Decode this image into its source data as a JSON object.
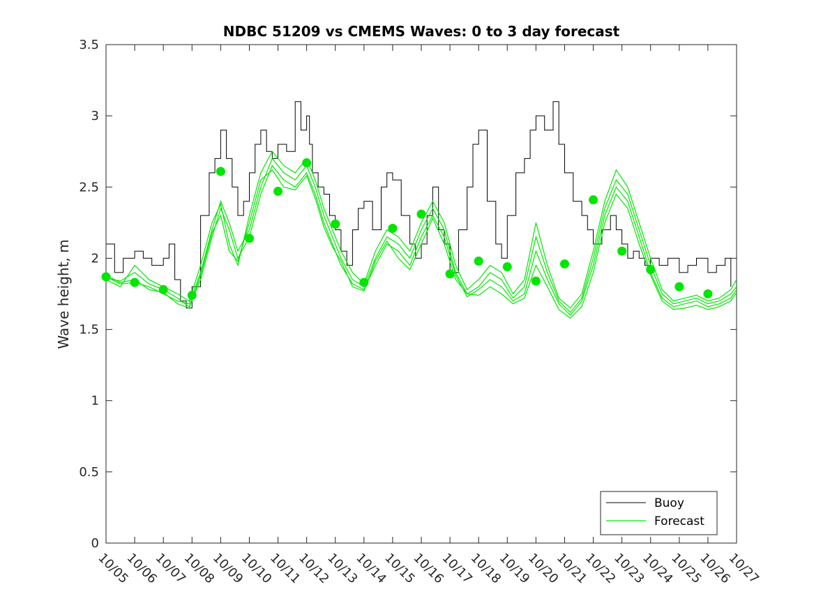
{
  "chart_data": {
    "type": "line",
    "title": "NDBC 51209 vs CMEMS Waves: 0 to 3 day forecast",
    "xlabel": "",
    "ylabel": "Wave height, m",
    "xlim": [
      0,
      22
    ],
    "ylim": [
      0,
      3.5
    ],
    "x_tick_labels": [
      "10/05",
      "10/06",
      "10/07",
      "10/08",
      "10/09",
      "10/10",
      "10/11",
      "10/12",
      "10/13",
      "10/14",
      "10/15",
      "10/16",
      "10/17",
      "10/18",
      "10/19",
      "10/20",
      "10/21",
      "10/22",
      "10/23",
      "10/24",
      "10/25",
      "10/26",
      "10/27"
    ],
    "y_ticks": [
      0,
      0.5,
      1,
      1.5,
      2,
      2.5,
      3,
      3.5
    ],
    "y_tick_labels": [
      "0",
      "0.5",
      "1",
      "1.5",
      "2",
      "2.5",
      "3",
      "3.5"
    ],
    "legend": {
      "location": "bottom-right",
      "entries": [
        "Buoy",
        "Forecast"
      ]
    },
    "colors": {
      "buoy": "#000000",
      "forecast": "#00e600",
      "axis": "#262626"
    },
    "buoy_series": {
      "name": "Buoy",
      "x": [
        0,
        0.3,
        0.6,
        1,
        1.3,
        1.6,
        2,
        2.2,
        2.4,
        2.6,
        2.8,
        3,
        3.3,
        3.6,
        3.8,
        4,
        4.2,
        4.4,
        4.6,
        4.8,
        5,
        5.2,
        5.4,
        5.6,
        5.8,
        6,
        6.3,
        6.6,
        6.8,
        7,
        7.1,
        7.2,
        7.4,
        7.6,
        7.8,
        8,
        8.2,
        8.4,
        8.6,
        8.8,
        9,
        9.3,
        9.6,
        9.8,
        10,
        10.3,
        10.6,
        10.8,
        11,
        11.2,
        11.4,
        11.6,
        11.8,
        12,
        12.3,
        12.6,
        12.8,
        13,
        13.3,
        13.6,
        13.8,
        14,
        14.3,
        14.6,
        14.8,
        15,
        15.3,
        15.6,
        15.8,
        16,
        16.3,
        16.6,
        16.8,
        17,
        17.3,
        17.6,
        17.8,
        18,
        18.2,
        18.4,
        18.6,
        18.8,
        19,
        19.3,
        19.6,
        19.8,
        20,
        20.3,
        20.6,
        20.8,
        21,
        21.3,
        21.6,
        21.8
      ],
      "values": [
        2.1,
        1.9,
        2.0,
        2.05,
        2.0,
        1.95,
        2.0,
        2.1,
        1.85,
        1.7,
        1.65,
        1.8,
        2.3,
        2.6,
        2.7,
        2.9,
        2.7,
        2.5,
        2.3,
        2.4,
        2.6,
        2.8,
        2.9,
        2.75,
        2.7,
        2.8,
        2.75,
        3.1,
        2.9,
        3.0,
        2.8,
        2.6,
        2.5,
        2.45,
        2.3,
        2.2,
        2.05,
        1.95,
        2.2,
        2.35,
        2.4,
        2.2,
        2.5,
        2.6,
        2.55,
        2.3,
        2.1,
        2.0,
        2.1,
        2.3,
        2.5,
        2.2,
        2.1,
        1.9,
        2.2,
        2.5,
        2.8,
        2.9,
        2.4,
        2.1,
        2.0,
        2.3,
        2.6,
        2.7,
        2.9,
        3.0,
        2.9,
        3.1,
        2.8,
        2.6,
        2.4,
        2.3,
        2.2,
        2.1,
        2.2,
        2.3,
        2.2,
        2.1,
        2.0,
        2.05,
        2.0,
        1.95,
        2.0,
        1.95,
        2.0,
        2.0,
        1.9,
        1.95,
        2.0,
        2.0,
        1.9,
        1.95,
        2.0,
        1.8
      ]
    },
    "forecast_series": [
      {
        "name": "Forecast run 1",
        "x": [
          0,
          0.5,
          1,
          1.5,
          2,
          2.5,
          2.9,
          3.3,
          3.7,
          4,
          4.3,
          4.6,
          5,
          5.4,
          5.8,
          6.2,
          6.6,
          7,
          7.3,
          7.6,
          7.9,
          8.2,
          8.6,
          9,
          9.4,
          9.8,
          10.2,
          10.6,
          11,
          11.4,
          11.8,
          12.2,
          12.6,
          13,
          13.4,
          13.8,
          14.2,
          14.6,
          15,
          15.4,
          15.8,
          16.2,
          16.6,
          17,
          17.4,
          17.8,
          18.2,
          18.6,
          19,
          19.4,
          19.8,
          20.2,
          20.6,
          21,
          21.4,
          21.8,
          22
        ],
        "values": [
          1.87,
          1.82,
          1.83,
          1.8,
          1.75,
          1.7,
          1.68,
          1.9,
          2.2,
          2.4,
          2.25,
          2.05,
          2.2,
          2.5,
          2.7,
          2.6,
          2.55,
          2.65,
          2.5,
          2.3,
          2.15,
          2.0,
          1.85,
          1.8,
          2.0,
          2.15,
          2.1,
          2.0,
          2.2,
          2.35,
          2.2,
          1.9,
          1.75,
          1.8,
          1.9,
          1.85,
          1.72,
          1.8,
          2.15,
          1.9,
          1.7,
          1.62,
          1.72,
          2.0,
          2.35,
          2.55,
          2.45,
          2.2,
          1.95,
          1.75,
          1.68,
          1.7,
          1.72,
          1.68,
          1.7,
          1.75,
          1.8
        ]
      },
      {
        "name": "Forecast run 2",
        "x": [
          0,
          0.5,
          1,
          1.5,
          2,
          2.5,
          2.9,
          3.3,
          3.7,
          4,
          4.3,
          4.6,
          5,
          5.4,
          5.8,
          6.2,
          6.6,
          7,
          7.3,
          7.6,
          7.9,
          8.2,
          8.6,
          9,
          9.4,
          9.8,
          10.2,
          10.6,
          11,
          11.4,
          11.8,
          12.2,
          12.6,
          13,
          13.4,
          13.8,
          14.2,
          14.6,
          15,
          15.4,
          15.8,
          16.2,
          16.6,
          17,
          17.4,
          17.8,
          18.2,
          18.6,
          19,
          19.4,
          19.8,
          20.2,
          20.6,
          21,
          21.4,
          21.8,
          22
        ],
        "values": [
          1.86,
          1.84,
          1.9,
          1.82,
          1.78,
          1.72,
          1.66,
          1.85,
          2.15,
          2.35,
          2.2,
          2.0,
          2.15,
          2.45,
          2.65,
          2.55,
          2.5,
          2.6,
          2.45,
          2.25,
          2.1,
          1.95,
          1.82,
          1.78,
          1.95,
          2.1,
          2.05,
          1.95,
          2.15,
          2.3,
          2.15,
          1.88,
          1.73,
          1.78,
          1.85,
          1.8,
          1.7,
          1.75,
          2.05,
          1.85,
          1.68,
          1.6,
          1.7,
          1.95,
          2.3,
          2.5,
          2.4,
          2.15,
          1.9,
          1.72,
          1.66,
          1.68,
          1.7,
          1.66,
          1.68,
          1.72,
          1.78
        ]
      },
      {
        "name": "Forecast run 3",
        "x": [
          0,
          0.5,
          1,
          1.5,
          2,
          2.5,
          2.9,
          3.3,
          3.7,
          4,
          4.3,
          4.6,
          5,
          5.4,
          5.8,
          6.2,
          6.6,
          7,
          7.3,
          7.6,
          7.9,
          8.2,
          8.6,
          9,
          9.4,
          9.8,
          10.2,
          10.6,
          11,
          11.4,
          11.8,
          12.2,
          12.6,
          13,
          13.4,
          13.8,
          14.2,
          14.6,
          15,
          15.4,
          15.8,
          16.2,
          16.6,
          17,
          17.4,
          17.8,
          18.2,
          18.6,
          19,
          19.4,
          19.8,
          20.2,
          20.6,
          21,
          21.4,
          21.8,
          22
        ],
        "values": [
          1.85,
          1.8,
          1.95,
          1.85,
          1.8,
          1.75,
          1.7,
          1.95,
          2.25,
          2.38,
          2.1,
          1.95,
          2.3,
          2.6,
          2.75,
          2.65,
          2.6,
          2.7,
          2.55,
          2.35,
          2.2,
          2.05,
          1.9,
          1.82,
          2.05,
          2.2,
          2.15,
          2.05,
          2.25,
          2.4,
          2.25,
          1.95,
          1.78,
          1.85,
          1.95,
          1.9,
          1.75,
          1.85,
          2.25,
          1.95,
          1.72,
          1.65,
          1.75,
          2.05,
          2.4,
          2.62,
          2.5,
          2.25,
          2.0,
          1.78,
          1.7,
          1.72,
          1.74,
          1.7,
          1.72,
          1.78,
          1.85
        ]
      },
      {
        "name": "Forecast run 4",
        "x": [
          0,
          0.5,
          1,
          1.5,
          2,
          2.5,
          2.9,
          3.3,
          3.7,
          4,
          4.3,
          4.6,
          5,
          5.4,
          5.8,
          6.2,
          6.6,
          7,
          7.3,
          7.6,
          7.9,
          8.2,
          8.6,
          9,
          9.4,
          9.8,
          10.2,
          10.6,
          11,
          11.4,
          11.8,
          12.2,
          12.6,
          13,
          13.4,
          13.8,
          14.2,
          14.6,
          15,
          15.4,
          15.8,
          16.2,
          16.6,
          17,
          17.4,
          17.8,
          18.2,
          18.6,
          19,
          19.4,
          19.8,
          20.2,
          20.6,
          21,
          21.4,
          21.8,
          22
        ],
        "values": [
          1.88,
          1.83,
          1.85,
          1.78,
          1.76,
          1.68,
          1.65,
          1.88,
          2.18,
          2.3,
          2.05,
          1.98,
          2.25,
          2.55,
          2.62,
          2.5,
          2.48,
          2.58,
          2.42,
          2.22,
          2.08,
          1.98,
          1.8,
          1.77,
          1.98,
          2.12,
          2.0,
          1.92,
          2.1,
          2.28,
          2.1,
          1.85,
          1.75,
          1.74,
          1.8,
          1.75,
          1.68,
          1.72,
          1.95,
          1.8,
          1.64,
          1.58,
          1.66,
          1.9,
          2.25,
          2.45,
          2.35,
          2.1,
          1.88,
          1.7,
          1.64,
          1.65,
          1.67,
          1.64,
          1.66,
          1.7,
          1.76
        ]
      }
    ],
    "forecast_markers": {
      "x": [
        0,
        1,
        2,
        3,
        4,
        5,
        6,
        7,
        8,
        9,
        10,
        11,
        12,
        13,
        14,
        15,
        16,
        17,
        18,
        19,
        20,
        21
      ],
      "values": [
        1.87,
        1.83,
        1.78,
        1.74,
        2.61,
        2.14,
        2.47,
        2.67,
        2.24,
        1.83,
        2.21,
        2.31,
        1.89,
        1.98,
        1.94,
        1.84,
        1.96,
        2.41,
        2.05,
        1.92,
        1.8,
        1.75
      ]
    }
  }
}
